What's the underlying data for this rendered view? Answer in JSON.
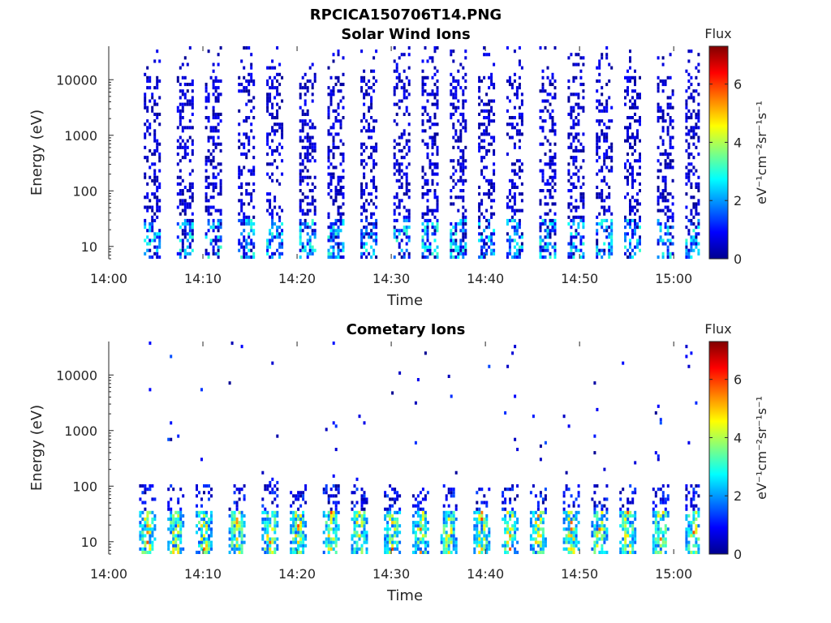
{
  "figure_title": "RPCICA150706T14.PNG",
  "colormap": [
    "#00008f",
    "#0000ff",
    "#0080ff",
    "#00ffff",
    "#80ff80",
    "#ffff00",
    "#ff8000",
    "#ff0000",
    "#800000"
  ],
  "chart_data": [
    {
      "type": "heatmap",
      "title": "Solar Wind Ions",
      "xlabel": "Time",
      "ylabel": "Energy (eV)",
      "y_scale": "log",
      "xlim": [
        "14:00",
        "15:03"
      ],
      "ylim": [
        6,
        40000
      ],
      "x_ticks": [
        "14:00",
        "14:10",
        "14:20",
        "14:30",
        "14:40",
        "14:50",
        "15:00"
      ],
      "y_ticks": [
        "10",
        "100",
        "1000",
        "10000"
      ],
      "colorbar": {
        "title": "Flux",
        "label": "eV⁻¹cm⁻²sr⁻¹s⁻¹",
        "range": [
          0,
          7.3
        ],
        "ticks": [
          "0",
          "2",
          "4",
          "6"
        ]
      },
      "pattern": "repeating vertical stripes of sparse counts spanning 6 eV to ~30 keV, mostly low flux (0–2), some cyan/green near 10–40 eV",
      "stripe_centers": [
        "14:04.5",
        "14:08",
        "14:11",
        "14:14.5",
        "14:17.5",
        "14:21",
        "14:24",
        "14:27.5",
        "14:31",
        "14:34",
        "14:37",
        "14:40",
        "14:43",
        "14:46.5",
        "14:49.5",
        "14:52.5",
        "14:55.5",
        "14:59",
        "15:02"
      ]
    },
    {
      "type": "heatmap",
      "title": "Cometary Ions",
      "xlabel": "Time",
      "ylabel": "Energy (eV)",
      "y_scale": "log",
      "xlim": [
        "14:00",
        "15:03"
      ],
      "ylim": [
        6,
        40000
      ],
      "x_ticks": [
        "14:00",
        "14:10",
        "14:20",
        "14:30",
        "14:40",
        "14:50",
        "15:00"
      ],
      "y_ticks": [
        "10",
        "100",
        "1000",
        "10000"
      ],
      "colorbar": {
        "title": "Flux",
        "label": "eV⁻¹cm⁻²sr⁻¹s⁻¹",
        "range": [
          0,
          7.3
        ],
        "ticks": [
          "0",
          "2",
          "4",
          "6"
        ]
      },
      "pattern": "repeating bursts concentrated between 6 and 100 eV with flux up to ~6 (yellow/orange), sparse single counts up to ~10 keV",
      "stripe_centers": [
        "14:04",
        "14:07",
        "14:10",
        "14:13.5",
        "14:17",
        "14:20",
        "14:23.5",
        "14:26.5",
        "14:30",
        "14:33",
        "14:36",
        "14:39.5",
        "14:42.5",
        "14:45.5",
        "14:49",
        "14:52",
        "14:55",
        "14:58.5",
        "15:02"
      ]
    }
  ]
}
